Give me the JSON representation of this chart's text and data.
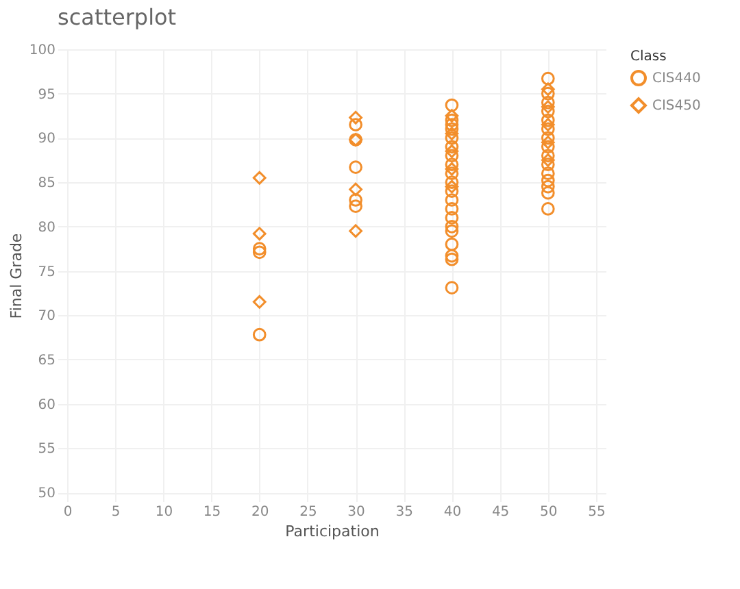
{
  "chart_data": {
    "type": "scatter",
    "title": "scatterplot",
    "xlabel": "Participation",
    "ylabel": "Final Grade",
    "legend_title": "Class",
    "legend": "top right",
    "grid": true,
    "xlim": [
      -1,
      56
    ],
    "xticks": [
      0,
      5,
      10,
      15,
      20,
      25,
      30,
      35,
      40,
      45,
      50,
      55
    ],
    "ylim": [
      49,
      100
    ],
    "yticks": [
      50,
      55,
      60,
      65,
      70,
      75,
      80,
      85,
      90,
      95,
      100
    ],
    "series": [
      {
        "name": "CIS440",
        "color": "#f28e2b",
        "marker": "circle",
        "x": [
          20,
          20,
          20,
          30,
          30,
          30,
          30,
          30,
          40,
          40,
          40,
          40,
          40,
          40,
          40,
          40,
          40,
          40,
          40,
          40,
          40,
          40,
          40,
          40,
          40,
          40,
          40,
          40,
          50,
          50,
          50,
          50,
          50,
          50,
          50,
          50,
          50,
          50,
          50,
          50,
          50,
          50,
          50
        ],
        "values": [
          77.5,
          77.1,
          67.8,
          91.5,
          89.8,
          86.7,
          83.0,
          82.3,
          93.7,
          92,
          91.5,
          91,
          90,
          89,
          88,
          87,
          86,
          85,
          84,
          83,
          82,
          81,
          80,
          79.5,
          78,
          76.7,
          76.3,
          73.1,
          96.7,
          95,
          94,
          93,
          92,
          91,
          90,
          89,
          88,
          87,
          86,
          85.2,
          84.5,
          83.8,
          82
        ]
      },
      {
        "name": "CIS450",
        "color": "#f28e2b",
        "marker": "diamond",
        "x": [
          20,
          20,
          20,
          30,
          30,
          30,
          30,
          40,
          40,
          40,
          40,
          40,
          50,
          50,
          50,
          50,
          50
        ],
        "values": [
          85.5,
          79.2,
          71.5,
          92.3,
          89.8,
          84.2,
          79.5,
          92.5,
          90.5,
          88.5,
          86.5,
          84.5,
          95.5,
          93.5,
          91.5,
          89.5,
          87.5
        ]
      }
    ]
  }
}
